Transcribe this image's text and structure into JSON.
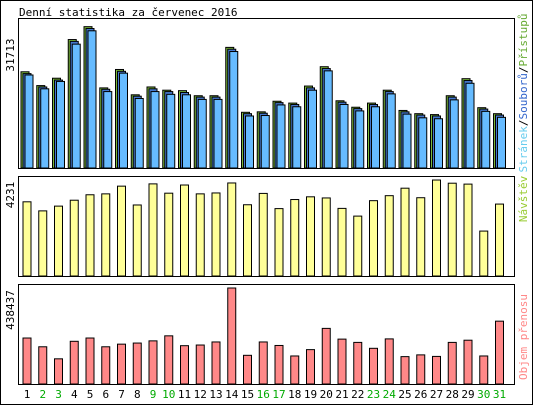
{
  "chart_data": [
    {
      "type": "bar",
      "title": "Denní statistika za červenec 2016",
      "ymax_label": "31713",
      "ylim": [
        0,
        31713
      ],
      "categories": [
        "1",
        "2",
        "3",
        "4",
        "5",
        "6",
        "7",
        "8",
        "9",
        "10",
        "11",
        "12",
        "13",
        "14",
        "15",
        "16",
        "17",
        "18",
        "19",
        "20",
        "21",
        "22",
        "23",
        "24",
        "25",
        "26",
        "27",
        "28",
        "29",
        "30",
        "31"
      ],
      "weekend_days": [
        "2",
        "3",
        "9",
        "10",
        "16",
        "17",
        "23",
        "24",
        "30",
        "31"
      ],
      "legend": [
        {
          "name": "Stránek",
          "color": "#66ccee"
        },
        {
          "name": "Souborů",
          "color": "#3366cc"
        },
        {
          "name": "Přístupů",
          "color": "#66aa33"
        }
      ],
      "series": [
        {
          "name": "Přístupů",
          "color": "#7ab83a",
          "values": [
            20900,
            17900,
            19500,
            27900,
            30700,
            17400,
            21400,
            15900,
            17600,
            16900,
            16800,
            15700,
            15700,
            26200,
            12100,
            12200,
            14500,
            14100,
            17800,
            22000,
            14600,
            13200,
            14100,
            16900,
            12500,
            11800,
            11600,
            15700,
            19400,
            13100,
            11800
          ]
        },
        {
          "name": "Souborů",
          "color": "#4477cc",
          "values": [
            20500,
            17600,
            19100,
            27500,
            30300,
            17100,
            21000,
            15600,
            17200,
            16600,
            16400,
            15400,
            15400,
            25800,
            11800,
            11900,
            14200,
            13800,
            17400,
            21600,
            14300,
            12900,
            13800,
            16600,
            12200,
            11500,
            11300,
            15400,
            19000,
            12800,
            11500
          ]
        },
        {
          "name": "Stránek",
          "color": "#66bbff",
          "values": [
            20200,
            17200,
            18800,
            26900,
            29800,
            16600,
            20600,
            15100,
            16600,
            16000,
            15900,
            14900,
            14900,
            25300,
            11300,
            11400,
            13700,
            13300,
            16900,
            21100,
            13800,
            12400,
            13300,
            16100,
            11700,
            10900,
            10700,
            14800,
            18400,
            12300,
            11000
          ]
        }
      ]
    },
    {
      "type": "bar",
      "ymax_label": "4231",
      "ylim": [
        0,
        4231
      ],
      "legend": [
        {
          "name": "Návštěv",
          "color": "#99cc33"
        }
      ],
      "series": [
        {
          "name": "Návštěv",
          "color": "#ffff99",
          "values": [
            3270,
            2870,
            3080,
            3340,
            3580,
            3620,
            3960,
            3130,
            4060,
            3650,
            4010,
            3620,
            3660,
            4100,
            3140,
            3640,
            2970,
            3370,
            3490,
            3440,
            2980,
            2640,
            3320,
            3540,
            3870,
            3450,
            4230,
            4090,
            4050,
            1980,
            3170
          ]
        }
      ]
    },
    {
      "type": "bar",
      "ymax_label": "438437",
      "ylim": [
        0,
        438437
      ],
      "legend": [
        {
          "name": "Objem přenosu",
          "color": "#ff8888"
        }
      ],
      "series": [
        {
          "name": "Objem přenosu",
          "color": "#ff8888",
          "values": [
            210000,
            170000,
            115000,
            195000,
            210000,
            170000,
            182000,
            187000,
            197000,
            220000,
            175000,
            178000,
            192000,
            438437,
            131000,
            192000,
            176000,
            128000,
            157000,
            254000,
            205000,
            190000,
            163000,
            206000,
            125000,
            133000,
            126000,
            190000,
            200000,
            128000,
            287000
          ]
        }
      ]
    }
  ]
}
